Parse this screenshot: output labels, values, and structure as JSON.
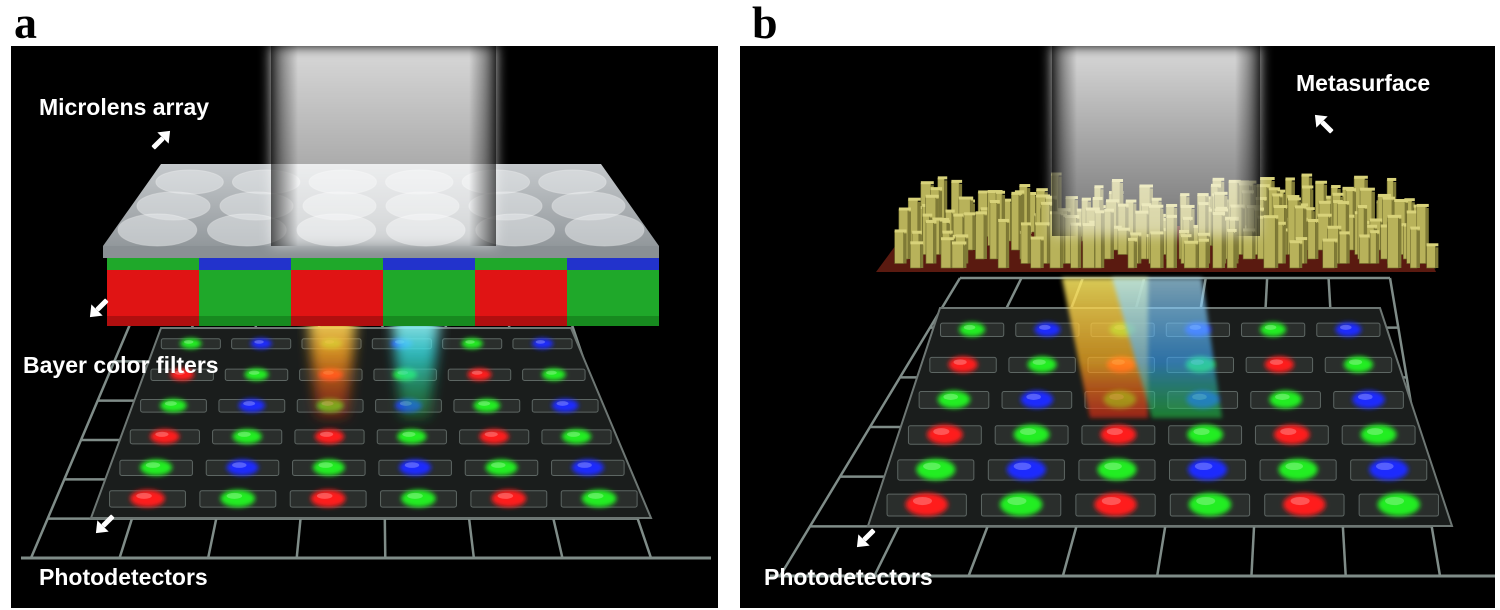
{
  "panels": [
    {
      "letter": "a",
      "labels": {
        "top": "Microlens array",
        "middle": "Bayer color filters",
        "bottom": "Photodetectors"
      }
    },
    {
      "letter": "b",
      "labels": {
        "top": "Metasurface",
        "bottom": "Photodetectors"
      }
    }
  ],
  "colors": {
    "red": "#ff1a1a",
    "green": "#22ee22",
    "blue": "#1a2cff",
    "background": "#000000",
    "grid": "#7f8c88",
    "pillar": "#b8b25a"
  },
  "bayer_pattern": [
    [
      "green",
      "blue",
      "green",
      "blue",
      "green",
      "blue"
    ],
    [
      "red",
      "green",
      "red",
      "green",
      "red",
      "green"
    ],
    [
      "green",
      "blue",
      "green",
      "blue",
      "green",
      "blue"
    ],
    [
      "red",
      "green",
      "red",
      "green",
      "red",
      "green"
    ],
    [
      "green",
      "blue",
      "green",
      "blue",
      "green",
      "blue"
    ],
    [
      "red",
      "green",
      "red",
      "green",
      "red",
      "green"
    ]
  ],
  "filter_strip": [
    "red",
    "green",
    "red",
    "green",
    "red",
    "green"
  ]
}
